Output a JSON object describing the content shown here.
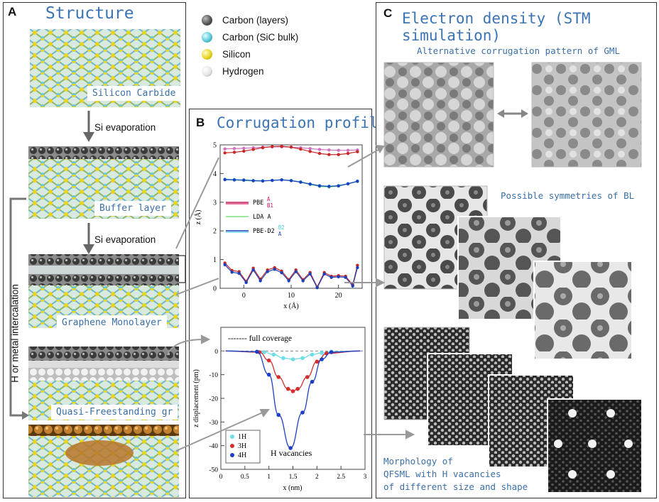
{
  "panel_a": {
    "letter": "A",
    "title": "Structure",
    "layer_labels": [
      "Silicon Carbide",
      "Buffer layer",
      "Graphene Monolayer",
      "Quasi-Freestanding gr"
    ],
    "step_labels": [
      "Si evaporation",
      "Si evaporation"
    ],
    "side_label": "H or metal intercalation"
  },
  "legend": {
    "items": [
      {
        "label": "Carbon (layers)",
        "color": "#555555"
      },
      {
        "label": "Carbon (SiC bulk)",
        "color": "#5cc8d8"
      },
      {
        "label": "Silicon",
        "color": "#e8d520"
      },
      {
        "label": "Hydrogen",
        "color": "#e6e6e6"
      }
    ]
  },
  "panel_b": {
    "letter": "B",
    "title": "Corrugation profiles"
  },
  "panel_c": {
    "letter": "C",
    "title": "Electron density (STM simulation)",
    "caption_gml": "Alternative corrugation pattern of GML",
    "caption_bl": "Possible symmetries of BL",
    "caption_qfsml": [
      "Morphology of",
      "QFSML with H vacancies",
      "of different size and shape"
    ]
  },
  "chart_data": [
    {
      "type": "line",
      "xlabel": "x (Å)",
      "ylabel": "z (Å)",
      "xlim": [
        -5,
        25
      ],
      "ylim": [
        0,
        5
      ],
      "xticks": [
        "0",
        "10",
        "20"
      ],
      "yticks": [
        "0",
        "1",
        "2",
        "3",
        "4",
        "5"
      ],
      "legend": {
        "entries": [
          {
            "label": "PBE",
            "sub_a": "A",
            "sub_b": "B1",
            "color": "#c2185b",
            "color_b": "#d81b60"
          },
          {
            "label": "LDA A",
            "color": "#7ee07e"
          },
          {
            "label": "PBE-D2",
            "sub_a": "B2",
            "sub_b": "A",
            "color": "#1a3fbf",
            "color_b": "#4dd0e1"
          }
        ]
      },
      "series": [
        {
          "name": "PBE A top",
          "color": "#d070c0",
          "x": [
            -4,
            -2,
            0,
            2,
            4,
            6,
            8,
            10,
            12,
            14,
            16,
            18,
            20,
            22,
            24
          ],
          "values": [
            4.86,
            4.87,
            4.88,
            4.9,
            4.92,
            4.93,
            4.93,
            4.92,
            4.9,
            4.87,
            4.84,
            4.82,
            4.81,
            4.81,
            4.82
          ]
        },
        {
          "name": "PBE B1 top",
          "color": "#c62828",
          "x": [
            -4,
            -2,
            0,
            2,
            4,
            6,
            8,
            10,
            12,
            14,
            16,
            18,
            20,
            22,
            24
          ],
          "values": [
            4.72,
            4.74,
            4.78,
            4.84,
            4.9,
            4.94,
            4.95,
            4.92,
            4.85,
            4.77,
            4.7,
            4.66,
            4.66,
            4.7,
            4.76
          ]
        },
        {
          "name": "LDA A",
          "color": "#7ee07e",
          "x": [
            -4,
            -2,
            0,
            2,
            4,
            6,
            8,
            10,
            12,
            14,
            16,
            18,
            20,
            22,
            24
          ],
          "values": [
            3.78,
            3.77,
            3.76,
            3.74,
            3.74,
            3.76,
            3.78,
            3.76,
            3.7,
            3.62,
            3.55,
            3.53,
            3.56,
            3.64,
            3.72
          ]
        },
        {
          "name": "PBE-D2 B2",
          "color": "#4dd0e1",
          "x": [
            -4,
            -2,
            0,
            2,
            4,
            6,
            8,
            10,
            12,
            14,
            16,
            18,
            20,
            22,
            24
          ],
          "values": [
            3.8,
            3.79,
            3.78,
            3.76,
            3.75,
            3.76,
            3.78,
            3.76,
            3.71,
            3.64,
            3.58,
            3.56,
            3.58,
            3.65,
            3.74
          ]
        },
        {
          "name": "PBE-D2 A",
          "color": "#1a3fbf",
          "x": [
            -4,
            -2,
            0,
            2,
            4,
            6,
            8,
            10,
            12,
            14,
            16,
            18,
            20,
            22,
            24
          ],
          "values": [
            3.79,
            3.78,
            3.77,
            3.75,
            3.74,
            3.76,
            3.78,
            3.75,
            3.7,
            3.63,
            3.57,
            3.55,
            3.57,
            3.64,
            3.73
          ]
        },
        {
          "name": "PBE interface",
          "color": "#c62828",
          "x": [
            -4,
            -2.5,
            -1,
            0.5,
            2,
            3.5,
            5,
            6.5,
            8,
            9.5,
            11,
            12.5,
            14,
            15.5,
            17,
            18.5,
            20,
            21.5,
            23,
            24
          ],
          "values": [
            0.88,
            0.62,
            0.58,
            0.24,
            0.7,
            0.32,
            0.64,
            0.72,
            0.6,
            0.3,
            0.64,
            0.3,
            0.55,
            0.05,
            0.55,
            0.42,
            0.44,
            0.42,
            0.12,
            0.8
          ]
        },
        {
          "name": "PBE-D2 interface",
          "color": "#1a3fbf",
          "x": [
            -4,
            -2.5,
            -1,
            0.5,
            2,
            3.5,
            5,
            6.5,
            8,
            9.5,
            11,
            12.5,
            14,
            15.5,
            17,
            18.5,
            20,
            21.5,
            23,
            24
          ],
          "values": [
            0.82,
            0.56,
            0.52,
            0.2,
            0.64,
            0.26,
            0.58,
            0.66,
            0.54,
            0.26,
            0.58,
            0.26,
            0.5,
            0.02,
            0.5,
            0.38,
            0.4,
            0.38,
            0.08,
            0.72
          ]
        }
      ]
    },
    {
      "type": "line",
      "xlabel": "x (nm)",
      "ylabel": "z displacement (pm)",
      "xlim": [
        0,
        3
      ],
      "ylim": [
        -50,
        10
      ],
      "xticks": [
        "0",
        "0.5",
        "1",
        "1.5",
        "2",
        "2.5",
        "3"
      ],
      "yticks": [
        "0",
        "-10",
        "-20",
        "-30",
        "-40",
        "-50"
      ],
      "reference_label": "------- full coverage",
      "annotation": "H vacancies",
      "legend": [
        "1H",
        "3H",
        "4H"
      ],
      "series": [
        {
          "name": "1H",
          "color": "#6fdde8",
          "x": [
            0.9,
            1.1,
            1.3,
            1.5,
            1.7,
            1.9,
            2.1,
            2.3
          ],
          "values": [
            -0.5,
            -1.5,
            -3.0,
            -3.5,
            -3.0,
            -1.5,
            -0.8,
            -0.3
          ]
        },
        {
          "name": "3H",
          "color": "#d32f2f",
          "x": [
            0.8,
            1.0,
            1.2,
            1.4,
            1.5,
            1.6,
            1.8,
            2.0,
            2.2
          ],
          "values": [
            -0.5,
            -4.0,
            -11.0,
            -16.0,
            -17.0,
            -16.0,
            -11.0,
            -4.5,
            -1.0
          ]
        },
        {
          "name": "4H",
          "color": "#1e3fc4",
          "x": [
            0.75,
            1.0,
            1.2,
            1.45,
            1.7,
            1.9,
            2.1,
            2.3
          ],
          "values": [
            -0.3,
            -10.0,
            -27.0,
            -41.0,
            -26.0,
            -13.0,
            -3.5,
            -0.5
          ]
        }
      ]
    }
  ]
}
